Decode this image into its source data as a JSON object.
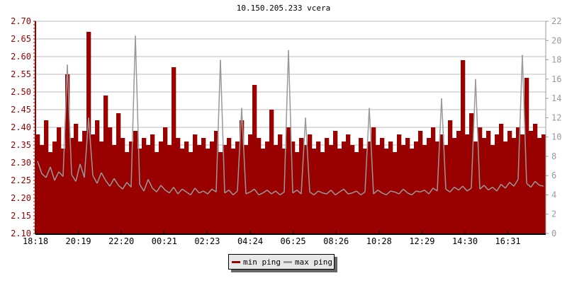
{
  "chart_data": {
    "type": "area",
    "title": "10.150.205.233 vcera",
    "xlabel": "",
    "ylabel": "",
    "x_ticks": [
      "18:18",
      "20:19",
      "22:20",
      "00:21",
      "02:23",
      "04:24",
      "06:25",
      "08:26",
      "10:28",
      "12:29",
      "14:30",
      "16:31"
    ],
    "y_left": {
      "ylim": [
        2.1,
        2.7
      ],
      "ticks": [
        "2.10",
        "2.15",
        "2.20",
        "2.25",
        "2.30",
        "2.35",
        "2.40",
        "2.45",
        "2.50",
        "2.55",
        "2.60",
        "2.65",
        "2.70"
      ],
      "color": "#990000"
    },
    "y_right": {
      "ylim": [
        0,
        22
      ],
      "ticks": [
        "0",
        "2",
        "4",
        "6",
        "8",
        "10",
        "12",
        "14",
        "16",
        "18",
        "20",
        "22"
      ],
      "color": "#999999"
    },
    "grid": true,
    "legend": "bottom-center",
    "series": [
      {
        "name": "min ping",
        "axis": "left",
        "color": "#990000",
        "values": [
          2.38,
          2.35,
          2.42,
          2.33,
          2.36,
          2.4,
          2.34,
          2.55,
          2.37,
          2.41,
          2.36,
          2.39,
          2.67,
          2.38,
          2.42,
          2.36,
          2.49,
          2.4,
          2.35,
          2.44,
          2.37,
          2.33,
          2.36,
          2.39,
          2.34,
          2.37,
          2.35,
          2.38,
          2.33,
          2.36,
          2.4,
          2.35,
          2.57,
          2.37,
          2.34,
          2.36,
          2.33,
          2.38,
          2.35,
          2.37,
          2.34,
          2.36,
          2.39,
          2.33,
          2.35,
          2.37,
          2.34,
          2.36,
          2.42,
          2.35,
          2.38,
          2.52,
          2.37,
          2.34,
          2.36,
          2.45,
          2.35,
          2.38,
          2.34,
          2.4,
          2.36,
          2.33,
          2.37,
          2.35,
          2.38,
          2.34,
          2.36,
          2.33,
          2.37,
          2.35,
          2.39,
          2.34,
          2.36,
          2.38,
          2.35,
          2.33,
          2.37,
          2.34,
          2.36,
          2.4,
          2.35,
          2.37,
          2.34,
          2.36,
          2.33,
          2.38,
          2.35,
          2.37,
          2.34,
          2.36,
          2.39,
          2.35,
          2.37,
          2.4,
          2.36,
          2.38,
          2.35,
          2.42,
          2.37,
          2.39,
          2.59,
          2.38,
          2.44,
          2.36,
          2.4,
          2.37,
          2.39,
          2.35,
          2.38,
          2.41,
          2.36,
          2.39,
          2.37,
          2.4,
          2.38,
          2.54,
          2.39,
          2.41,
          2.37,
          2.38
        ]
      },
      {
        "name": "max ping",
        "axis": "right",
        "color": "#999999",
        "values": [
          7.5,
          6.2,
          5.8,
          6.9,
          5.5,
          6.4,
          5.9,
          17.5,
          6.1,
          5.4,
          7.2,
          5.8,
          12.0,
          6.0,
          5.2,
          6.3,
          5.5,
          4.9,
          5.7,
          5.0,
          4.6,
          5.3,
          4.8,
          20.5,
          5.1,
          4.4,
          5.6,
          4.7,
          4.3,
          5.0,
          4.5,
          4.2,
          4.8,
          4.1,
          4.6,
          4.3,
          4.0,
          4.7,
          4.2,
          4.4,
          4.1,
          4.6,
          4.3,
          18.0,
          4.2,
          4.5,
          4.0,
          4.4,
          13.0,
          4.1,
          4.3,
          4.6,
          4.0,
          4.2,
          4.5,
          4.1,
          4.4,
          4.0,
          4.3,
          19.0,
          4.2,
          4.5,
          4.1,
          12.0,
          4.3,
          4.0,
          4.4,
          4.2,
          4.1,
          4.5,
          4.0,
          4.3,
          4.6,
          4.1,
          4.2,
          4.4,
          4.0,
          4.3,
          13.0,
          4.1,
          4.5,
          4.2,
          4.0,
          4.4,
          4.3,
          4.1,
          4.6,
          4.2,
          4.0,
          4.4,
          4.3,
          4.5,
          4.1,
          4.7,
          4.4,
          14.0,
          4.6,
          4.3,
          4.8,
          4.5,
          4.9,
          4.4,
          4.7,
          16.0,
          4.6,
          5.0,
          4.5,
          4.8,
          4.4,
          5.1,
          4.7,
          5.3,
          4.9,
          5.6,
          18.5,
          5.2,
          4.8,
          5.4,
          5.0,
          4.9
        ]
      }
    ]
  }
}
